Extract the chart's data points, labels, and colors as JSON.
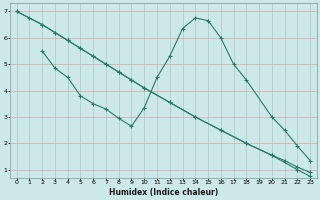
{
  "bg_color": "#cce8e8",
  "grid_color_h": "#d8a0a0",
  "grid_color_v": "#b8d8d8",
  "line_color": "#2a7a6a",
  "xlabel": "Humidex (Indice chaleur)",
  "xlim": [
    -0.5,
    23.5
  ],
  "ylim": [
    0.7,
    7.3
  ],
  "xticks": [
    0,
    1,
    2,
    3,
    4,
    5,
    6,
    7,
    8,
    9,
    10,
    11,
    12,
    13,
    14,
    15,
    16,
    17,
    18,
    19,
    20,
    21,
    22,
    23
  ],
  "yticks": [
    1,
    2,
    3,
    4,
    5,
    6,
    7
  ],
  "line1_x": [
    0,
    1,
    2,
    3,
    4,
    5,
    6,
    7,
    8,
    9,
    10,
    12,
    14,
    16,
    18,
    20,
    21,
    22,
    23
  ],
  "line1_y": [
    7.0,
    6.75,
    6.5,
    6.2,
    5.9,
    5.6,
    5.3,
    5.0,
    4.7,
    4.4,
    4.1,
    3.55,
    3.0,
    2.5,
    2.0,
    1.55,
    1.35,
    1.1,
    0.9
  ],
  "line2_x": [
    0,
    2,
    3,
    4,
    5,
    6,
    7,
    8,
    9,
    10,
    12,
    14,
    16,
    18,
    20,
    22,
    23
  ],
  "line2_y": [
    7.0,
    6.5,
    6.2,
    5.9,
    5.6,
    5.3,
    5.0,
    4.7,
    4.4,
    4.1,
    3.55,
    3.0,
    2.5,
    2.0,
    1.55,
    1.0,
    0.75
  ],
  "line3_x": [
    2,
    3,
    4,
    5,
    6,
    7,
    8,
    9,
    10,
    11,
    12,
    13,
    14,
    15,
    16,
    17,
    18,
    20,
    21,
    22,
    23
  ],
  "line3_y": [
    5.5,
    4.85,
    4.5,
    3.8,
    3.5,
    3.3,
    2.95,
    2.65,
    3.35,
    4.5,
    5.3,
    6.35,
    6.75,
    6.65,
    6.0,
    5.0,
    4.4,
    3.0,
    2.5,
    1.9,
    1.35
  ]
}
